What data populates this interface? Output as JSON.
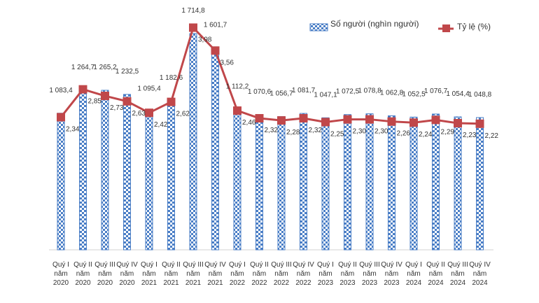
{
  "chart_data": {
    "type": "bar+line",
    "categories": [
      [
        "Quý I",
        "năm",
        "2020"
      ],
      [
        "Quý II",
        "năm",
        "2020"
      ],
      [
        "Quý III",
        "năm",
        "2020"
      ],
      [
        "Quý IV",
        "năm",
        "2020"
      ],
      [
        "Quý I",
        "năm",
        "2021"
      ],
      [
        "Quý II",
        "năm",
        "2021"
      ],
      [
        "Quý III",
        "năm",
        "2021"
      ],
      [
        "Quý IV",
        "năm",
        "2021"
      ],
      [
        "Quý I",
        "năm",
        "2022"
      ],
      [
        "Quý II",
        "năm",
        "2022"
      ],
      [
        "Quý III",
        "năm",
        "2022"
      ],
      [
        "Quý IV",
        "năm",
        "2022"
      ],
      [
        "Quý I",
        "năm",
        "2023"
      ],
      [
        "Quý II",
        "năm",
        "2023"
      ],
      [
        "Quý III",
        "năm",
        "2023"
      ],
      [
        "Quý IV",
        "năm",
        "2023"
      ],
      [
        "Quý I",
        "năm",
        "2024"
      ],
      [
        "Quý II",
        "năm",
        "2024"
      ],
      [
        "Quý III",
        "năm",
        "2024"
      ],
      [
        "Quý IV",
        "năm",
        "2024"
      ]
    ],
    "series": [
      {
        "name": "Số người (nghìn người)",
        "type": "bar",
        "axis": "left",
        "color": "#4a7ec6",
        "values": [
          1083.4,
          1264.7,
          1265.2,
          1232.5,
          1095.4,
          1182.6,
          1714.8,
          1601.7,
          1112.2,
          1070.6,
          1056.7,
          1081.7,
          1047.1,
          1072.5,
          1078.8,
          1062.8,
          1052.5,
          1076.7,
          1054.4,
          1048.8
        ],
        "labels": [
          "1 083,4",
          "1 264,7",
          "1 265,2",
          "1 232,5",
          "1 095,4",
          "1 182,6",
          "1 714,8",
          "1 601,7",
          "1 112,2",
          "1 070,6",
          "1 056,7",
          "1 081,7",
          "1 047,1",
          "1 072,5",
          "1 078,8",
          "1 062,8",
          "1 052,5",
          "1 076,7",
          "1 054,4",
          "1 048,8"
        ]
      },
      {
        "name": "Tỷ lệ (%)",
        "type": "line",
        "axis": "right",
        "color": "#c0474a",
        "values": [
          2.34,
          2.85,
          2.73,
          2.63,
          2.42,
          2.62,
          3.98,
          3.56,
          2.46,
          2.32,
          2.28,
          2.32,
          2.25,
          2.3,
          2.3,
          2.26,
          2.24,
          2.29,
          2.23,
          2.22
        ],
        "labels": [
          "2,34",
          "2,85",
          "2,73",
          "2,63",
          "2,42",
          "2,62",
          "3,98",
          "3,56",
          "2,46",
          "2,32",
          "2,28",
          "2,32",
          "2,25",
          "2,30",
          "2,30",
          "2,26",
          "2,24",
          "2,29",
          "2,23",
          "2,22"
        ]
      }
    ],
    "ylim_left": [
      0,
      1870
    ],
    "ylim_right": [
      0,
      4.23
    ],
    "grid": false,
    "legend": "top-right"
  }
}
